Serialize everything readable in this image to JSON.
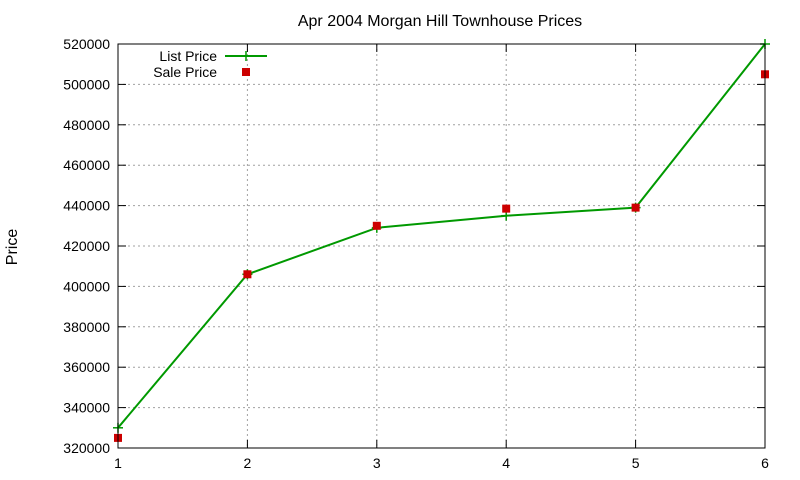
{
  "chart_data": {
    "type": "line",
    "title": "Apr 2004 Morgan Hill Townhouse Prices",
    "xlabel": "",
    "ylabel": "Price",
    "x": [
      1,
      2,
      3,
      4,
      5,
      6
    ],
    "xlim": [
      1,
      6
    ],
    "ylim": [
      320000,
      520000
    ],
    "xticks": [
      "1",
      "2",
      "3",
      "4",
      "5",
      "6"
    ],
    "yticks": [
      "320000",
      "340000",
      "360000",
      "380000",
      "400000",
      "420000",
      "440000",
      "460000",
      "480000",
      "500000",
      "520000"
    ],
    "grid": true,
    "legend_position": "top-left",
    "series": [
      {
        "name": "List Price",
        "style": "linespoints",
        "marker": "plus",
        "color": "#009900",
        "values": [
          330000,
          406000,
          429000,
          435000,
          439000,
          520000
        ]
      },
      {
        "name": "Sale Price",
        "style": "points",
        "marker": "square",
        "color": "#cc0000",
        "values": [
          325000,
          406000,
          430000,
          438500,
          439000,
          505000
        ]
      }
    ]
  }
}
